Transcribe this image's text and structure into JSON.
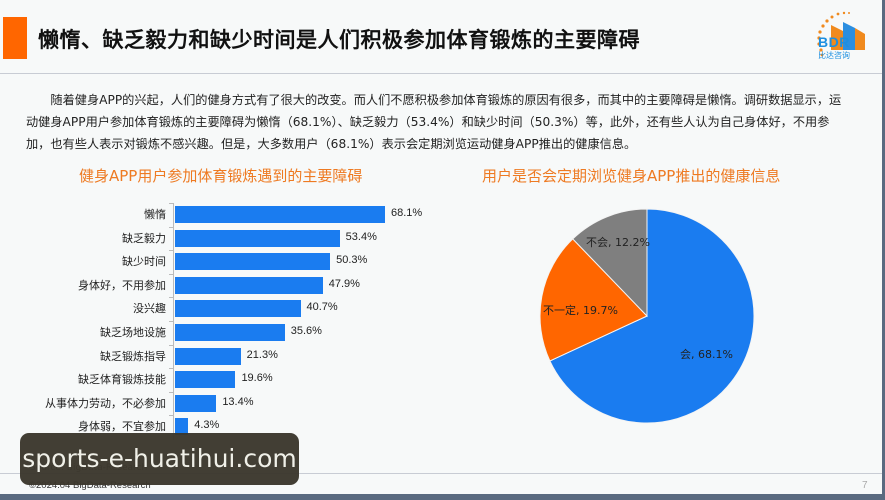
{
  "header": {
    "title": "懒惰、缺乏毅力和缺少时间是人们积极参加体育锻炼的主要障碍",
    "accent_color": "#ff6600",
    "logo": {
      "text": "BDR",
      "subtext": "比达咨询"
    }
  },
  "intro": {
    "text": "随着健身APP的兴起，人们的健身方式有了很大的改变。而人们不愿积极参加体育锻炼的原因有很多，而其中的主要障碍是懒惰。调研数据显示，运动健身APP用户参加体育锻炼的主要障碍为懒惰（68.1%）、缺乏毅力（53.4%）和缺少时间（50.3%）等，此外，还有些人认为自己身体好，不用参加，也有些人表示对锻炼不感兴趣。但是，大多数用户（68.1%）表示会定期浏览运动健身APP推出的健康信息。"
  },
  "chart_data": [
    {
      "type": "bar",
      "orientation": "horizontal",
      "title": "健身APP用户参加体育锻炼遇到的主要障碍",
      "categories": [
        "懒惰",
        "缺乏毅力",
        "缺少时间",
        "身体好，不用参加",
        "没兴趣",
        "缺乏场地设施",
        "缺乏锻炼指导",
        "缺乏体育锻炼技能",
        "从事体力劳动，不必参加",
        "身体弱，不宜参加"
      ],
      "values": [
        68.1,
        53.4,
        50.3,
        47.9,
        40.7,
        35.6,
        21.3,
        19.6,
        13.4,
        4.3
      ],
      "value_labels": [
        "68.1%",
        "53.4%",
        "50.3%",
        "47.9%",
        "40.7%",
        "35.6%",
        "21.3%",
        "19.6%",
        "13.4%",
        "4.3%"
      ],
      "unit": "%",
      "color": "#1a7cf0",
      "xlabel": "",
      "ylabel": "",
      "grid": false
    },
    {
      "type": "pie",
      "title": "用户是否会定期浏览健身APP推出的健康信息",
      "categories": [
        "会",
        "不一定",
        "不会"
      ],
      "values": [
        68.1,
        19.7,
        12.2
      ],
      "labels": [
        "会, 68.1%",
        "不一定, 19.7%",
        "不会, 12.2%"
      ],
      "colors": [
        "#1a7cf0",
        "#ff6600",
        "#7f7f7f"
      ],
      "legend": "none"
    }
  ],
  "footer": {
    "source": "Source: BigData-Research",
    "copyright": "©2024.04 BigData-Research",
    "page_number": "7"
  },
  "watermark": {
    "text": "sports-e-huatihui.com"
  }
}
